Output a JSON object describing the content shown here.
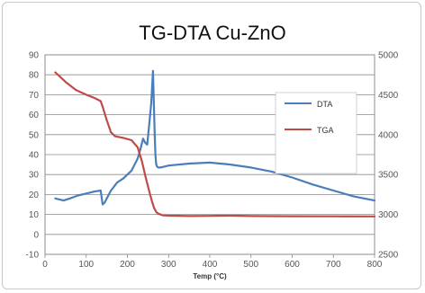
{
  "chart_data": {
    "type": "line",
    "title": "TG-DTA Cu-ZnO",
    "xlabel": "Temp (°C)",
    "ylabel": "",
    "y2label": "",
    "xlim": [
      0,
      800
    ],
    "ylim": [
      -10,
      90
    ],
    "y2lim": [
      2500,
      5000
    ],
    "x_ticks": [
      0,
      100,
      200,
      300,
      400,
      500,
      600,
      700,
      800
    ],
    "y_ticks": [
      -10,
      0,
      10,
      20,
      30,
      40,
      50,
      60,
      70,
      80,
      90
    ],
    "y2_ticks": [
      2500,
      3000,
      3500,
      4000,
      4500,
      5000
    ],
    "grid": "horizontal",
    "legend_position": "right",
    "series": [
      {
        "name": "DTA",
        "axis": "left",
        "color": "#4a7ebb",
        "x": [
          25,
          35,
          45,
          60,
          80,
          100,
          120,
          135,
          140,
          145,
          150,
          160,
          175,
          190,
          210,
          225,
          232,
          238,
          243,
          248,
          253,
          258,
          262,
          266,
          268,
          270,
          272,
          275,
          280,
          300,
          350,
          400,
          450,
          500,
          550,
          600,
          650,
          700,
          750,
          800
        ],
        "y": [
          18,
          17.5,
          17,
          18,
          19.5,
          20.5,
          21.5,
          22,
          15,
          16,
          18,
          22,
          26,
          28,
          32,
          38,
          43,
          48,
          46,
          45,
          55,
          66,
          82,
          52,
          40,
          35,
          34,
          33.5,
          33.5,
          34.5,
          35.5,
          36,
          35,
          33.5,
          31.5,
          28.5,
          25,
          22,
          19,
          17
        ]
      },
      {
        "name": "TGA",
        "axis": "right",
        "color": "#be4b48",
        "x": [
          25,
          50,
          75,
          100,
          120,
          135,
          140,
          150,
          160,
          170,
          190,
          210,
          225,
          235,
          245,
          255,
          260,
          265,
          270,
          275,
          285,
          300,
          350,
          400,
          450,
          500,
          600,
          700,
          800
        ],
        "y": [
          4780,
          4660,
          4560,
          4500,
          4460,
          4420,
          4350,
          4180,
          4030,
          3980,
          3960,
          3930,
          3840,
          3670,
          3450,
          3250,
          3160,
          3080,
          3030,
          3010,
          2990,
          2985,
          2980,
          2982,
          2985,
          2980,
          2978,
          2976,
          2975
        ]
      }
    ]
  }
}
